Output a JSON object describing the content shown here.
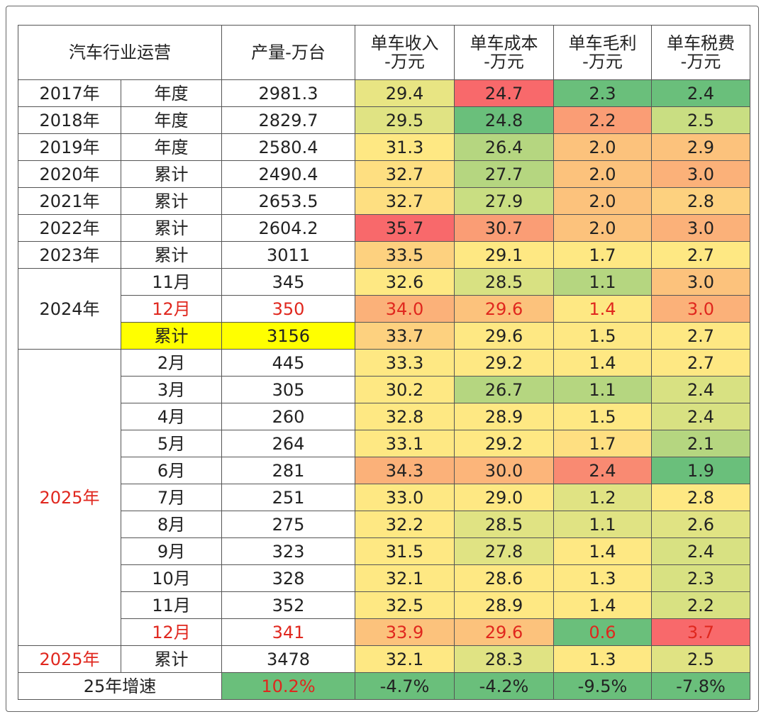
{
  "header": [
    "汽车行业运营",
    "产量-万台",
    [
      "单车收入",
      "-万元"
    ],
    [
      "单车成本",
      "-万元"
    ],
    [
      "单车毛利",
      "-万元"
    ],
    [
      "单车税费",
      "-万元"
    ]
  ],
  "groups": [
    {
      "year": "2017年",
      "rows": [
        {
          "period": "年度",
          "cells": [
            "2981.3",
            "29.4",
            "24.7",
            "2.3",
            "2.4"
          ],
          "fills": [
            "#ffffff",
            "#e8e583",
            "#f8696b",
            "#6abf7b",
            "#6abf7b"
          ]
        }
      ]
    },
    {
      "year": "2018年",
      "rows": [
        {
          "period": "年度",
          "cells": [
            "2829.7",
            "29.5",
            "24.8",
            "2.2",
            "2.5"
          ],
          "fills": [
            "#ffffff",
            "#e0e383",
            "#6abf7b",
            "#fa9d75",
            "#c9de82"
          ]
        }
      ]
    },
    {
      "year": "2019年",
      "rows": [
        {
          "period": "年度",
          "cells": [
            "2580.4",
            "31.3",
            "26.4",
            "2.0",
            "2.9"
          ],
          "fills": [
            "#ffffff",
            "#fee883",
            "#b5d680",
            "#fcc27c",
            "#fcc27c"
          ]
        }
      ]
    },
    {
      "year": "2020年",
      "rows": [
        {
          "period": "累计",
          "cells": [
            "2490.4",
            "32.7",
            "27.7",
            "2.0",
            "3.0"
          ],
          "fills": [
            "#ffffff",
            "#fedf81",
            "#b5d680",
            "#fcc27c",
            "#fbb179"
          ]
        }
      ]
    },
    {
      "year": "2021年",
      "rows": [
        {
          "period": "累计",
          "cells": [
            "2653.5",
            "32.7",
            "27.9",
            "2.0",
            "2.8"
          ],
          "fills": [
            "#ffffff",
            "#fedf81",
            "#c9de82",
            "#fcc27c",
            "#fdd17f"
          ]
        }
      ]
    },
    {
      "year": "2022年",
      "rows": [
        {
          "period": "累计",
          "cells": [
            "2604.2",
            "35.7",
            "30.7",
            "2.0",
            "3.0"
          ],
          "fills": [
            "#ffffff",
            "#f8696b",
            "#fa9d75",
            "#fcc27c",
            "#fbb179"
          ]
        }
      ]
    },
    {
      "year": "2023年",
      "rows": [
        {
          "period": "累计",
          "cells": [
            "3011",
            "33.5",
            "29.1",
            "1.7",
            "2.7"
          ],
          "fills": [
            "#ffffff",
            "#fdd17f",
            "#fee883",
            "#fee883",
            "#fee883"
          ]
        }
      ]
    },
    {
      "year": "2024年",
      "rows": [
        {
          "period": "11月",
          "cells": [
            "345",
            "32.6",
            "28.5",
            "1.1",
            "3.0"
          ],
          "fills": [
            "#ffffff",
            "#fee883",
            "#d8e182",
            "#b5d680",
            "#fcc27c"
          ]
        },
        {
          "period": "12月",
          "text_color": "#e0271e",
          "cells": [
            "350",
            "34.0",
            "29.6",
            "1.4",
            "3.0"
          ],
          "fills": [
            "#ffffff",
            "#fbb179",
            "#fcc27c",
            "#fee883",
            "#fbb179"
          ]
        },
        {
          "period": "累计",
          "period_fill": "#ffff00",
          "cells": [
            "3156",
            "33.7",
            "29.6",
            "1.5",
            "2.7"
          ],
          "fills": [
            "#ffff00",
            "#fdd17f",
            "#fee883",
            "#fee883",
            "#fee883"
          ]
        }
      ]
    },
    {
      "year": "2025年",
      "text_color": "#e0271e",
      "rows": [
        {
          "period": "2月",
          "cells": [
            "445",
            "33.3",
            "29.2",
            "1.4",
            "2.7"
          ],
          "fills": [
            "#ffffff",
            "#fee883",
            "#fee883",
            "#fee883",
            "#fee883"
          ]
        },
        {
          "period": "3月",
          "cells": [
            "305",
            "30.2",
            "26.7",
            "1.1",
            "2.4"
          ],
          "fills": [
            "#ffffff",
            "#fee883",
            "#b5d680",
            "#b5d680",
            "#d8e182"
          ]
        },
        {
          "period": "4月",
          "cells": [
            "260",
            "32.8",
            "28.9",
            "1.5",
            "2.4"
          ],
          "fills": [
            "#ffffff",
            "#fee883",
            "#fee883",
            "#fee883",
            "#d8e182"
          ]
        },
        {
          "period": "5月",
          "cells": [
            "264",
            "33.1",
            "29.2",
            "1.7",
            "2.1"
          ],
          "fills": [
            "#ffffff",
            "#fee883",
            "#fee883",
            "#fedf81",
            "#b5d680"
          ]
        },
        {
          "period": "6月",
          "cells": [
            "281",
            "34.3",
            "30.0",
            "2.4",
            "1.9"
          ],
          "fills": [
            "#ffffff",
            "#fbb179",
            "#fcb57a",
            "#f98a72",
            "#6abf7b"
          ]
        },
        {
          "period": "7月",
          "cells": [
            "251",
            "33.0",
            "29.0",
            "1.2",
            "2.8"
          ],
          "fills": [
            "#ffffff",
            "#fee883",
            "#fee883",
            "#e0e383",
            "#fee883"
          ]
        },
        {
          "period": "8月",
          "cells": [
            "275",
            "32.2",
            "28.5",
            "1.1",
            "2.6"
          ],
          "fills": [
            "#ffffff",
            "#fee883",
            "#e0e383",
            "#e0e383",
            "#e0e383"
          ]
        },
        {
          "period": "9月",
          "cells": [
            "323",
            "31.5",
            "27.8",
            "1.4",
            "2.4"
          ],
          "fills": [
            "#ffffff",
            "#fee883",
            "#e0e383",
            "#fee883",
            "#d8e182"
          ]
        },
        {
          "period": "10月",
          "cells": [
            "328",
            "32.1",
            "28.6",
            "1.3",
            "2.3"
          ],
          "fills": [
            "#ffffff",
            "#fee883",
            "#fee883",
            "#fee883",
            "#d8e182"
          ]
        },
        {
          "period": "11月",
          "cells": [
            "352",
            "32.5",
            "28.9",
            "1.4",
            "2.2"
          ],
          "fills": [
            "#ffffff",
            "#fee883",
            "#fee883",
            "#fee883",
            "#d8e182"
          ]
        },
        {
          "period": "12月",
          "text_color": "#e0271e",
          "cells": [
            "341",
            "33.9",
            "29.6",
            "0.6",
            "3.7"
          ],
          "fills": [
            "#ffffff",
            "#fcc27c",
            "#fcc27c",
            "#6abf7b",
            "#f8696b"
          ]
        }
      ]
    },
    {
      "year": "2025年",
      "text_color": "#e0271e",
      "rows": [
        {
          "period": "累计",
          "cells": [
            "3478",
            "32.1",
            "28.3",
            "1.3",
            "2.5"
          ],
          "fills": [
            "#ffffff",
            "#fee883",
            "#e0e383",
            "#fee883",
            "#e0e383"
          ]
        }
      ]
    }
  ],
  "growth": {
    "label": "25年增速",
    "cells": [
      "10.2%",
      "-4.7%",
      "-4.2%",
      "-9.5%",
      "-7.8%"
    ],
    "fills": [
      "#6abf7b",
      "#6abf7b",
      "#6abf7b",
      "#6abf7b",
      "#6abf7b"
    ],
    "cell_colors": [
      "#e0271e",
      "#222222",
      "#222222",
      "#222222",
      "#222222"
    ]
  }
}
